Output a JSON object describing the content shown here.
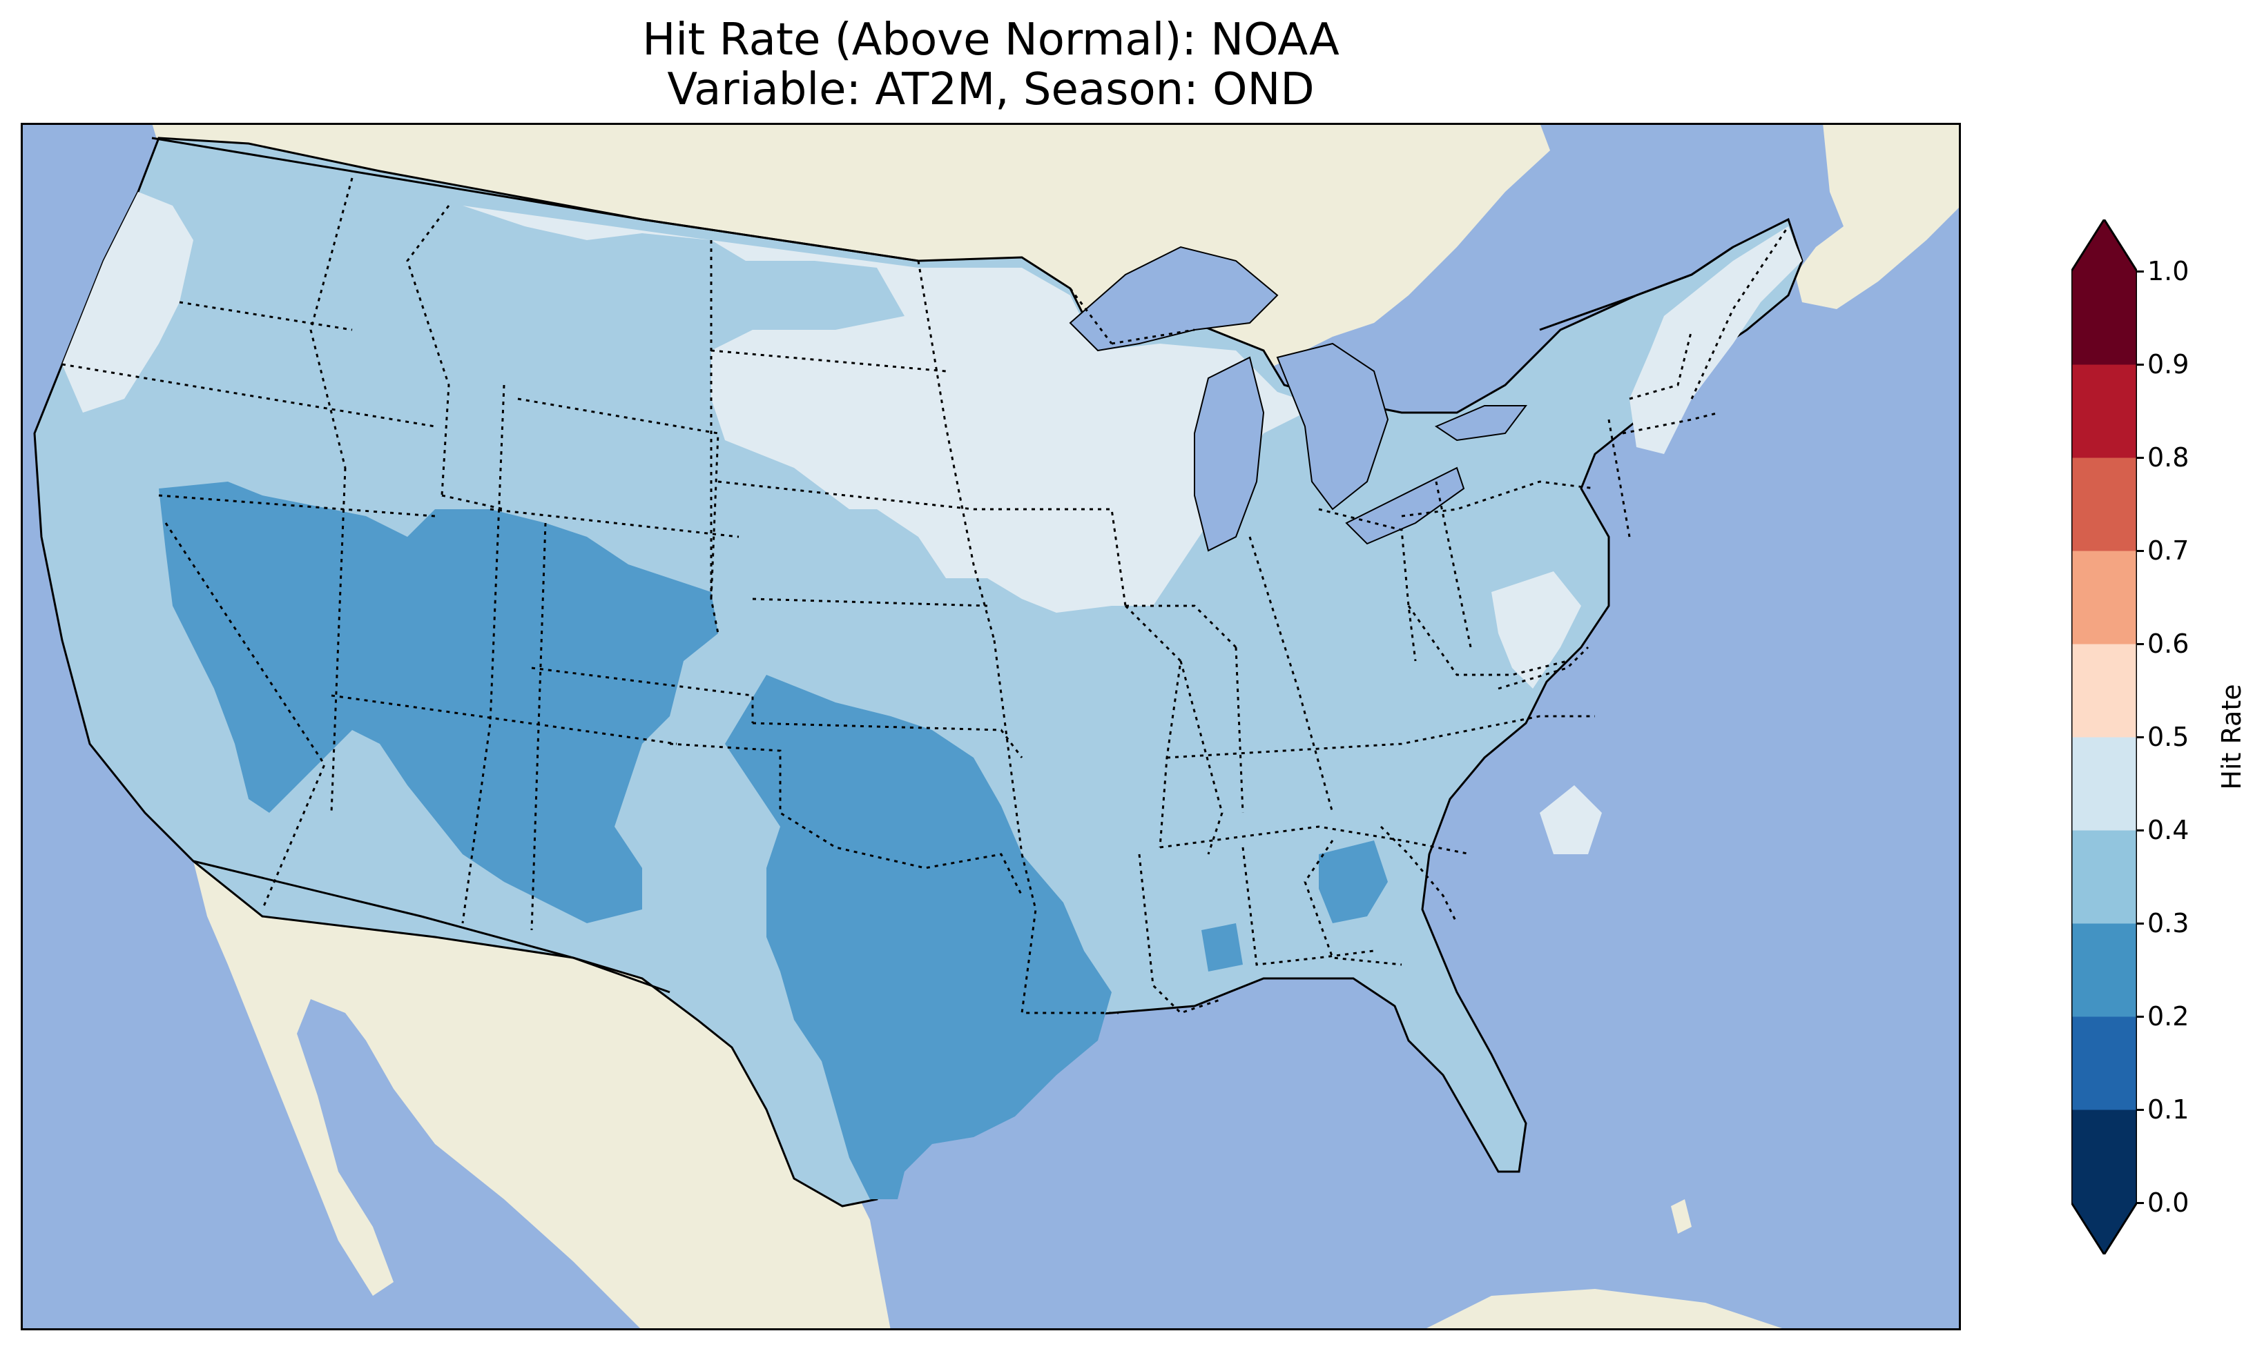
{
  "title": {
    "line1": "Hit Rate (Above Normal): NOAA",
    "line2": "Variable: AT2M, Season: OND"
  },
  "colors": {
    "ocean": "#95b3e0",
    "land": "#efedda",
    "lake": "#95b3e0",
    "bins": [
      "#053061",
      "#2166ac",
      "#4393c3",
      "#92c5de",
      "#d1e5f0",
      "#fddbc7",
      "#f4a582",
      "#d6604d",
      "#b2182b",
      "#67001f"
    ],
    "map_levels": {
      "0.2-0.3": "#529bcb",
      "0.3-0.4": "#a7cde3",
      "0.4-0.5": "#e0ebf2"
    }
  },
  "map": {
    "projection": "PlateCarree",
    "lon_range": [
      -125,
      -66
    ],
    "lat_range": [
      24,
      50.5
    ],
    "levels": [
      0.2,
      0.3,
      0.4,
      0.5
    ]
  },
  "colorbar": {
    "label": "Hit Rate",
    "ticks": [
      "0.0",
      "0.1",
      "0.2",
      "0.3",
      "0.4",
      "0.5",
      "0.6",
      "0.7",
      "0.8",
      "0.9",
      "1.0"
    ],
    "extend": "both"
  }
}
